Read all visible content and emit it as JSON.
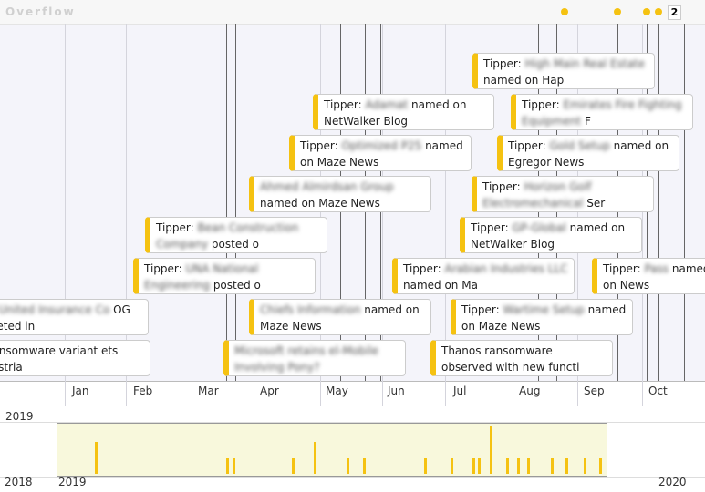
{
  "header": {
    "title": "Overflow",
    "badge": "2"
  },
  "axis": {
    "months": [
      "Jan",
      "Feb",
      "Mar",
      "Apr",
      "May",
      "Jun",
      "Jul",
      "Aug",
      "Sep",
      "Oct"
    ],
    "year": "2019"
  },
  "overview": {
    "years": [
      "2018",
      "2019",
      "2020"
    ]
  },
  "events": [
    {
      "prefix": "Tipper: ",
      "blurred": "High Main Real Estate",
      "suffix": " named on Hap"
    },
    {
      "prefix": "Tipper: ",
      "blurred": "Adamat",
      "suffix": " named on NetWalker Blog"
    },
    {
      "prefix": "Tipper: ",
      "blurred": "Emirates Fire Fighting Equipment",
      "suffix": " F"
    },
    {
      "prefix": "Tipper: ",
      "blurred": "Optimized P25",
      "suffix": " named on Maze News"
    },
    {
      "prefix": "Tipper: ",
      "blurred": "Gold Setup",
      "suffix": " named on Egregor News"
    },
    {
      "blurred": "Ahmed Almirdsan Group",
      "suffix": " named on Maze News"
    },
    {
      "prefix": "Tipper: ",
      "blurred": "Horizon Golf Electromechanical",
      "suffix": " Ser"
    },
    {
      "prefix": "Tipper: ",
      "blurred": "Bean Construction Company",
      "suffix": " posted o"
    },
    {
      "prefix": "Tipper: ",
      "blurred": "GP-Global",
      "suffix": " named on NetWalker Blog"
    },
    {
      "prefix": "Tipper: ",
      "blurred": "UNA National Engineering",
      "suffix": " posted o"
    },
    {
      "prefix": "Tipper: ",
      "blurred": "Arabian Industries LLC",
      "suffix": " named on Ma"
    },
    {
      "prefix": "Tipper: ",
      "blurred": "Pass",
      "suffix": " named on News"
    },
    {
      "blurred": "Ltd, United Insurance Co",
      "suffix": " OG targeted in"
    },
    {
      "blurred": "Chiefs Information",
      "suffix": " named on Maze News"
    },
    {
      "prefix": "Tipper: ",
      "blurred": "Wartime Setup",
      "suffix": " named on Maze News"
    },
    {
      "prefix": "le ransomware variant ets industria"
    },
    {
      "blurred": "Microsoft retains el-Mobile Involving Pony?"
    },
    {
      "prefix": "Thanos ransomware observed with new functi"
    }
  ]
}
